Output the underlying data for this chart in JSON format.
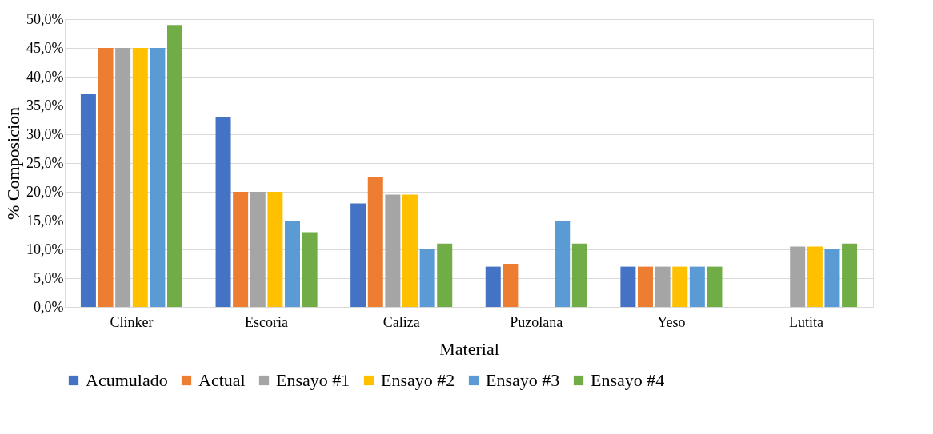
{
  "chart_data": {
    "type": "bar",
    "xlabel": "Material",
    "ylabel": "% Composicion",
    "categories": [
      "Clinker",
      "Escoria",
      "Caliza",
      "Puzolana",
      "Yeso",
      "Lutita"
    ],
    "series": [
      {
        "name": "Acumulado",
        "color": "#4472c4",
        "values": [
          37,
          33,
          18,
          7,
          7,
          null
        ]
      },
      {
        "name": "Actual",
        "color": "#ed7d31",
        "values": [
          45,
          20,
          22.5,
          7.5,
          7,
          null
        ]
      },
      {
        "name": "Ensayo #1",
        "color": "#a5a5a5",
        "values": [
          45,
          20,
          19.5,
          null,
          7,
          10.5
        ]
      },
      {
        "name": "Ensayo #2",
        "color": "#ffc000",
        "values": [
          45,
          20,
          19.5,
          null,
          7,
          10.5
        ]
      },
      {
        "name": "Ensayo #3",
        "color": "#5b9bd5",
        "values": [
          45,
          15,
          10,
          15,
          7,
          10
        ]
      },
      {
        "name": "Ensayo #4",
        "color": "#70ad47",
        "values": [
          49,
          13,
          11,
          11,
          7,
          11
        ]
      }
    ],
    "ylim": [
      0,
      50
    ],
    "yticks": [
      {
        "value": 0,
        "label": "0,0%"
      },
      {
        "value": 5,
        "label": "5,0%"
      },
      {
        "value": 10,
        "label": "10,0%"
      },
      {
        "value": 15,
        "label": "15,0%"
      },
      {
        "value": 20,
        "label": "20,0%"
      },
      {
        "value": 25,
        "label": "25,0%"
      },
      {
        "value": 30,
        "label": "30,0%"
      },
      {
        "value": 35,
        "label": "35,0%"
      },
      {
        "value": 40,
        "label": "40,0%"
      },
      {
        "value": 45,
        "label": "45,0%"
      },
      {
        "value": 50,
        "label": "50,0%"
      }
    ],
    "grid": "y",
    "legend": "bottom"
  }
}
